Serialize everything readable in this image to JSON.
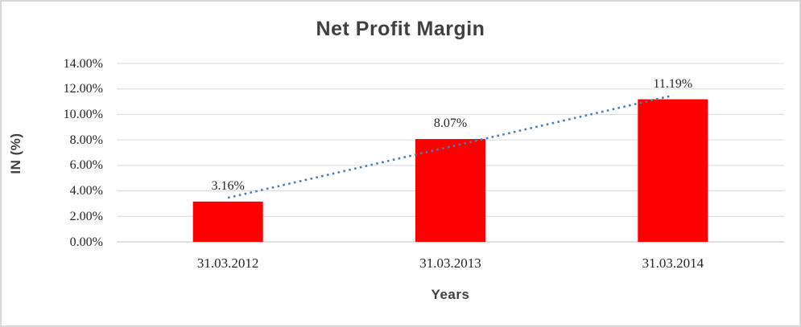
{
  "chart_data": {
    "type": "bar",
    "title": "Net Profit Margin",
    "xlabel": "Years",
    "ylabel": "IN (%)",
    "categories": [
      "31.03.2012",
      "31.03.2013",
      "31.03.2014"
    ],
    "values": [
      3.16,
      8.07,
      11.19
    ],
    "data_labels": [
      "3.16%",
      "8.07%",
      "11.19%"
    ],
    "ylim": [
      0,
      14
    ],
    "ytick_step": 2,
    "ytick_labels": [
      "0.00%",
      "2.00%",
      "4.00%",
      "6.00%",
      "8.00%",
      "10.00%",
      "12.00%",
      "14.00%"
    ],
    "grid": true,
    "legend": "none",
    "trendline": {
      "type": "linear",
      "style": "dotted"
    },
    "colors": {
      "bar": "#ff0000",
      "trendline": "#4a7ebb",
      "gridline": "#d9d9d9",
      "axis_line": "#bfbfbf",
      "border": "#d9d9d9",
      "heading_text": "#404040",
      "tick_text": "#262626"
    }
  }
}
